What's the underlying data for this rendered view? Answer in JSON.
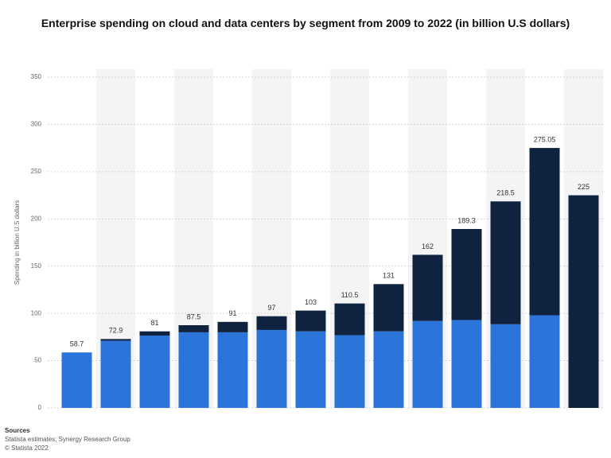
{
  "chart_data": {
    "type": "stacked_bar",
    "title": "Enterprise spending on cloud and data centers by segment from 2009 to 2022 (in billion U.S dollars)",
    "y_label": "Spending in billion U.S dollars",
    "categories": [
      null,
      null,
      null,
      null,
      null,
      null,
      null,
      null,
      null,
      null,
      null,
      null,
      null,
      null
    ],
    "series": [
      {
        "color": "#2b74d9",
        "values": [
          58.7,
          71,
          76.5,
          80,
          80,
          82.5,
          81,
          77,
          81,
          92,
          93,
          88.5,
          98,
          0
        ]
      },
      {
        "color": "#0f2340",
        "values": [
          0,
          1.9,
          4.5,
          7.5,
          11,
          14.5,
          22,
          33.5,
          50,
          70,
          96.3,
          130,
          177.05,
          225
        ]
      }
    ],
    "totals": [
      58.7,
      72.9,
      81,
      87.5,
      91,
      97,
      103,
      110.5,
      131,
      162,
      189.3,
      218.5,
      275.05,
      225
    ],
    "ylim": [
      0,
      350
    ],
    "yticks": [
      0,
      50,
      100,
      150,
      200,
      250,
      300,
      350
    ],
    "grid": true,
    "source_title": "Sources",
    "source": "Statista estimates; Synergy Research Group",
    "copyright": "© Statista 2022"
  }
}
